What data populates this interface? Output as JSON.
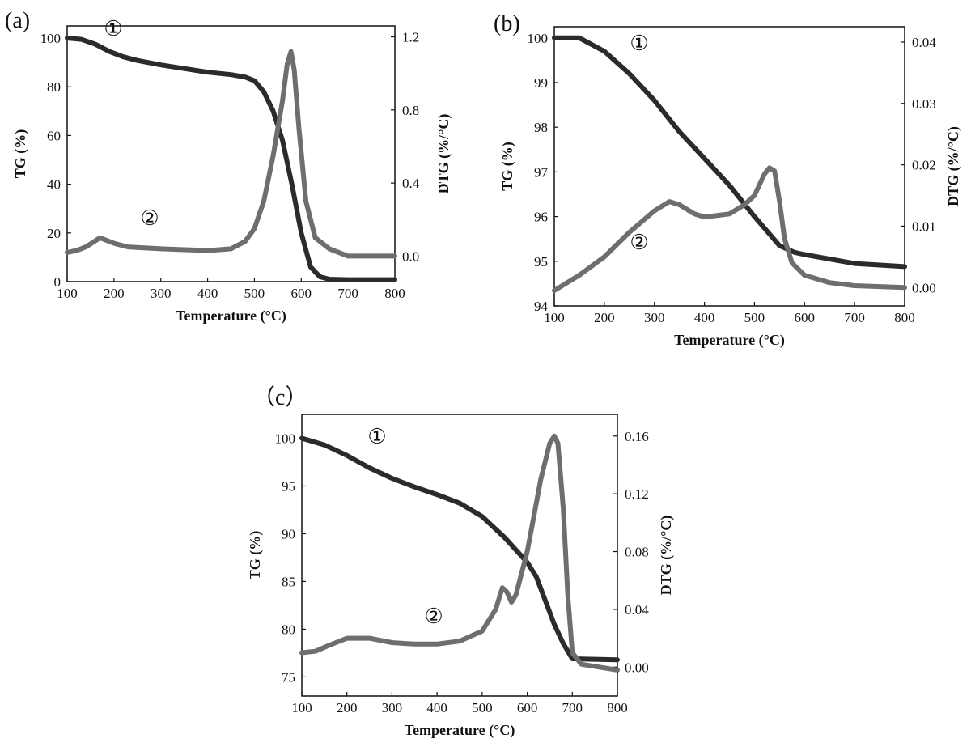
{
  "chart_data": [
    {
      "type": "line",
      "panel_label": "(a)",
      "xlabel": "Temperature (°C)",
      "ylabel_left": "TG (%)",
      "ylabel_right": "DTG (%/°C)",
      "xlim": [
        100,
        800
      ],
      "ylim_left": [
        0,
        105
      ],
      "ylim_right": [
        -0.14,
        1.26
      ],
      "xticks": [
        "100",
        "200",
        "300",
        "400",
        "500",
        "600",
        "700",
        "800"
      ],
      "yticks_left": [
        "0",
        "20",
        "40",
        "60",
        "80",
        "100"
      ],
      "yticks_right": [
        "0.0",
        "0.4",
        "0.8",
        "1.2"
      ],
      "markers": [
        "①",
        "②"
      ],
      "series": [
        {
          "name": "TG",
          "axis": "left",
          "color": "#2b2b2b",
          "x": [
            100,
            130,
            160,
            190,
            220,
            250,
            300,
            350,
            400,
            450,
            480,
            500,
            520,
            540,
            560,
            580,
            600,
            620,
            640,
            660,
            700,
            800
          ],
          "y": [
            100,
            99.5,
            97.5,
            94.5,
            92.3,
            90.8,
            89,
            87.5,
            86,
            85,
            84,
            82.5,
            78,
            70,
            58,
            40,
            20,
            6,
            2,
            1,
            0.8,
            0.8
          ]
        },
        {
          "name": "DTG",
          "axis": "right",
          "color": "#6e6e6e",
          "x": [
            100,
            120,
            140,
            170,
            200,
            230,
            300,
            400,
            450,
            480,
            500,
            520,
            540,
            560,
            570,
            578,
            585,
            595,
            610,
            630,
            660,
            700,
            800
          ],
          "y": [
            0.02,
            0.03,
            0.05,
            0.1,
            0.07,
            0.05,
            0.04,
            0.03,
            0.04,
            0.08,
            0.15,
            0.3,
            0.55,
            0.85,
            1.05,
            1.12,
            1.02,
            0.7,
            0.3,
            0.1,
            0.04,
            0.0,
            0.0
          ]
        }
      ]
    },
    {
      "type": "line",
      "panel_label": "(b)",
      "xlabel": "Temperature (°C)",
      "ylabel_left": "TG (%)",
      "ylabel_right": "DTG (%/°C)",
      "xlim": [
        100,
        800
      ],
      "ylim_left": [
        94,
        100.25
      ],
      "ylim_right": [
        -0.003,
        0.0425
      ],
      "xticks": [
        "100",
        "200",
        "300",
        "400",
        "500",
        "600",
        "700",
        "800"
      ],
      "yticks_left": [
        "94",
        "95",
        "96",
        "97",
        "98",
        "99",
        "100"
      ],
      "yticks_right": [
        "0.00",
        "0.01",
        "0.02",
        "0.03",
        "0.04"
      ],
      "markers": [
        "①",
        "②"
      ],
      "series": [
        {
          "name": "TG",
          "axis": "left",
          "color": "#2b2b2b",
          "x": [
            100,
            150,
            200,
            250,
            300,
            350,
            400,
            450,
            500,
            550,
            580,
            600,
            650,
            700,
            800
          ],
          "y": [
            100,
            100,
            99.7,
            99.2,
            98.6,
            97.9,
            97.3,
            96.7,
            96.0,
            95.35,
            95.2,
            95.15,
            95.05,
            94.95,
            94.88
          ]
        },
        {
          "name": "DTG",
          "axis": "right",
          "color": "#6e6e6e",
          "x": [
            100,
            150,
            200,
            250,
            300,
            330,
            350,
            380,
            400,
            450,
            480,
            500,
            520,
            530,
            540,
            550,
            560,
            575,
            600,
            650,
            700,
            800
          ],
          "y": [
            -0.0005,
            0.002,
            0.005,
            0.009,
            0.0125,
            0.014,
            0.0135,
            0.012,
            0.0115,
            0.012,
            0.0135,
            0.015,
            0.0185,
            0.0195,
            0.019,
            0.014,
            0.008,
            0.004,
            0.002,
            0.0008,
            0.0003,
            0.0
          ]
        }
      ]
    },
    {
      "type": "line",
      "panel_label": "（c）",
      "xlabel": "Temperature (°C)",
      "ylabel_left": "TG (%)",
      "ylabel_right": "DTG (%/°C)",
      "xlim": [
        100,
        800
      ],
      "ylim_left": [
        73,
        102.5
      ],
      "ylim_right": [
        -0.02,
        0.175
      ],
      "xticks": [
        "100",
        "200",
        "300",
        "400",
        "500",
        "600",
        "700",
        "800"
      ],
      "yticks_left": [
        "75",
        "80",
        "85",
        "90",
        "95",
        "100"
      ],
      "yticks_right": [
        "0.00",
        "0.04",
        "0.08",
        "0.12",
        "0.16"
      ],
      "markers": [
        "①",
        "②"
      ],
      "series": [
        {
          "name": "TG",
          "axis": "left",
          "color": "#2b2b2b",
          "x": [
            100,
            150,
            200,
            250,
            300,
            350,
            400,
            450,
            500,
            550,
            600,
            620,
            640,
            660,
            680,
            700,
            800
          ],
          "y": [
            100,
            99.3,
            98.2,
            96.9,
            95.8,
            94.9,
            94.1,
            93.2,
            91.8,
            89.6,
            87,
            85.5,
            83,
            80.5,
            78.5,
            76.9,
            76.8
          ]
        },
        {
          "name": "DTG",
          "axis": "right",
          "color": "#6e6e6e",
          "x": [
            100,
            130,
            160,
            200,
            250,
            300,
            350,
            400,
            450,
            500,
            530,
            545,
            555,
            565,
            575,
            600,
            630,
            650,
            660,
            668,
            680,
            690,
            700,
            720,
            800
          ],
          "y": [
            0.01,
            0.011,
            0.015,
            0.02,
            0.02,
            0.017,
            0.016,
            0.016,
            0.018,
            0.025,
            0.04,
            0.055,
            0.052,
            0.045,
            0.05,
            0.08,
            0.13,
            0.155,
            0.16,
            0.155,
            0.11,
            0.05,
            0.01,
            0.002,
            -0.002
          ]
        }
      ]
    }
  ]
}
